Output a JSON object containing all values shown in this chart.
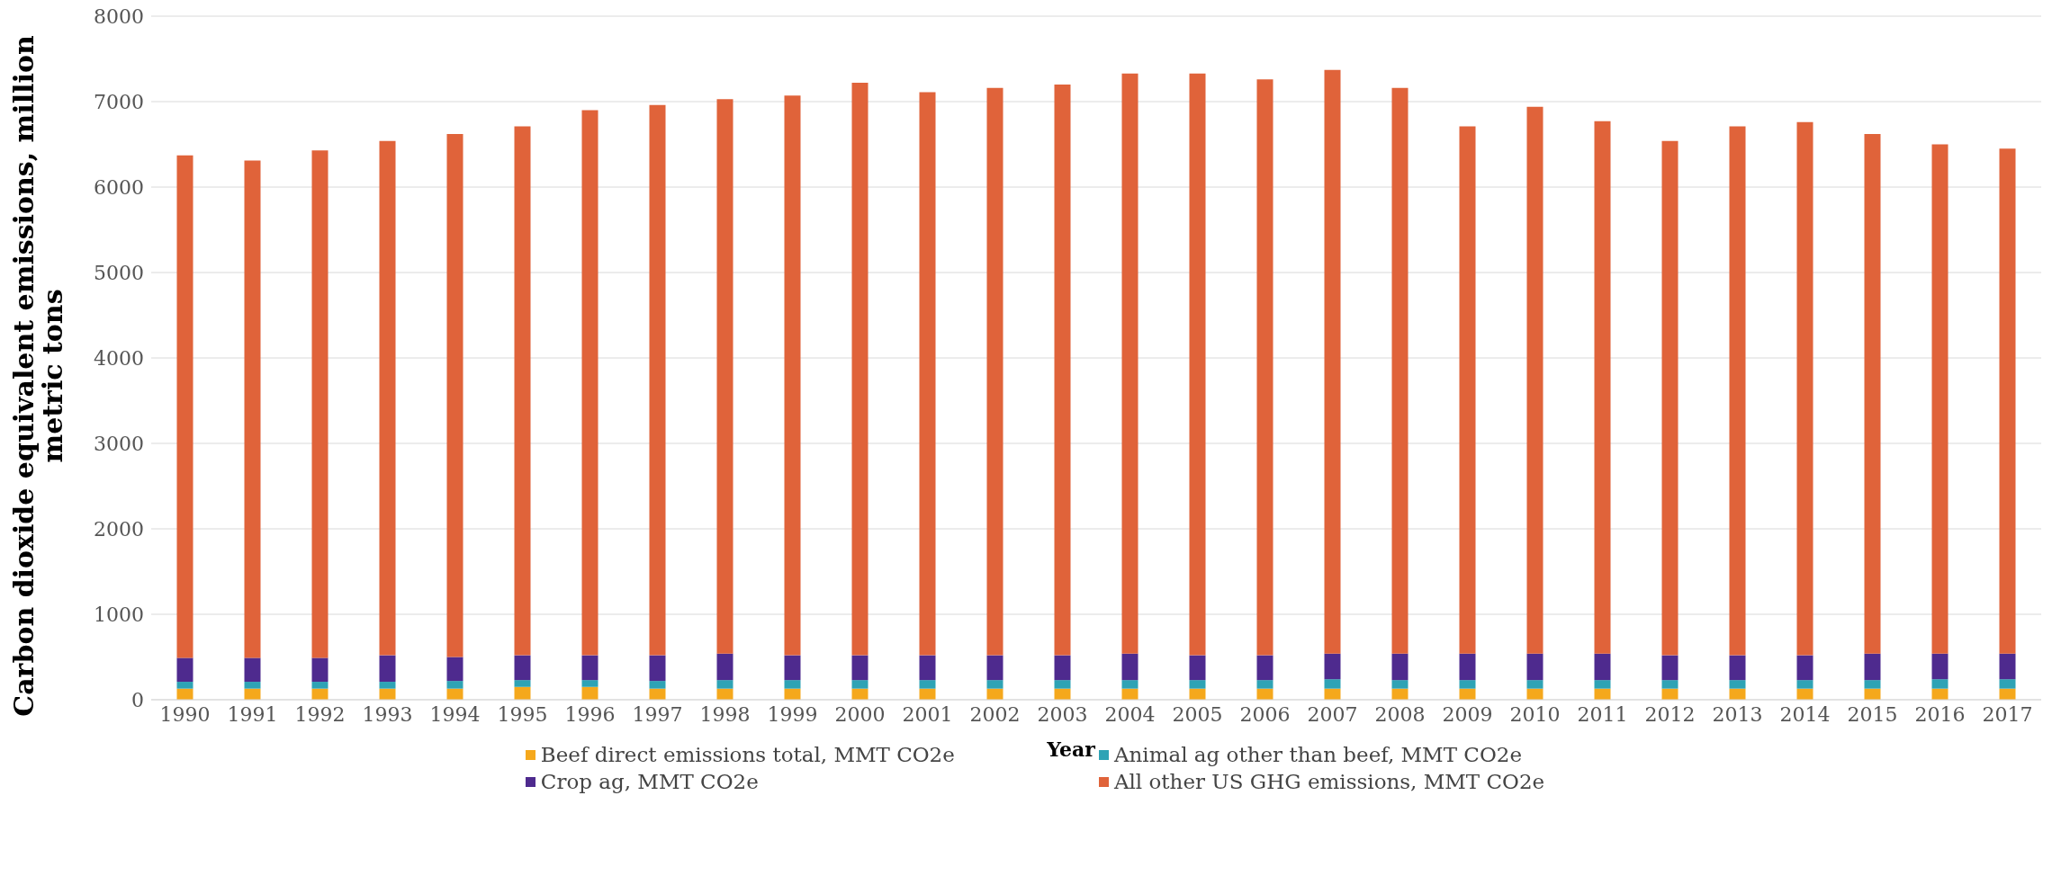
{
  "chart_data": {
    "type": "bar",
    "stacked": true,
    "xlabel": "Year",
    "ylabel": "Carbon dioxide equivalent emissions, million metric tons",
    "categories": [
      "1990",
      "1991",
      "1992",
      "1993",
      "1994",
      "1995",
      "1996",
      "1997",
      "1998",
      "1999",
      "2000",
      "2001",
      "2002",
      "2003",
      "2004",
      "2005",
      "2006",
      "2007",
      "2008",
      "2009",
      "2010",
      "2011",
      "2012",
      "2013",
      "2014",
      "2015",
      "2016",
      "2017"
    ],
    "series": [
      {
        "name": "Beef direct emissions total, MMT CO2e",
        "color": "#f5a81c",
        "values": [
          130,
          130,
          130,
          130,
          130,
          150,
          150,
          130,
          130,
          130,
          130,
          130,
          130,
          130,
          130,
          130,
          130,
          130,
          130,
          130,
          130,
          130,
          130,
          130,
          130,
          130,
          130,
          130
        ]
      },
      {
        "name": "Animal ag other than beef, MMT CO2e",
        "color": "#2ea3b5",
        "values": [
          80,
          80,
          80,
          80,
          90,
          80,
          80,
          90,
          100,
          100,
          100,
          100,
          100,
          100,
          100,
          100,
          100,
          110,
          100,
          100,
          100,
          100,
          100,
          100,
          100,
          100,
          110,
          110
        ]
      },
      {
        "name": "Crop ag, MMT CO2e",
        "color": "#4e2a8e",
        "values": [
          280,
          280,
          280,
          310,
          280,
          290,
          290,
          300,
          310,
          290,
          290,
          290,
          290,
          290,
          310,
          290,
          290,
          300,
          310,
          310,
          310,
          310,
          290,
          290,
          290,
          310,
          300,
          300
        ]
      },
      {
        "name": "All other US GHG emissions, MMT CO2e",
        "color": "#e0633a",
        "values": [
          5880,
          5820,
          5940,
          6020,
          6120,
          6190,
          6380,
          6440,
          6490,
          6550,
          6700,
          6590,
          6640,
          6680,
          6790,
          6810,
          6740,
          6830,
          6620,
          6170,
          6400,
          6230,
          6020,
          6190,
          6240,
          6080,
          5960,
          5910
        ]
      }
    ],
    "ylim": [
      0,
      8000
    ],
    "yticks": [
      0,
      1000,
      2000,
      3000,
      4000,
      5000,
      6000,
      7000,
      8000
    ],
    "grid": "y",
    "legend": "bottom"
  }
}
